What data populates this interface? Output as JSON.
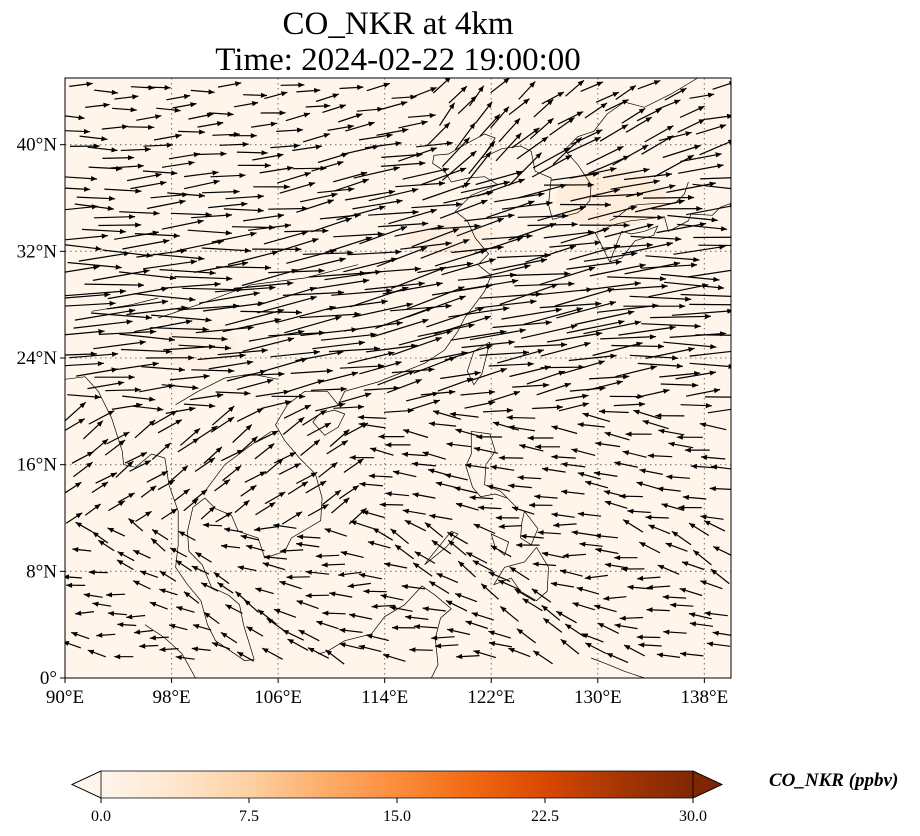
{
  "figure": {
    "title_line1": "CO_NKR at 4km",
    "title_line2": "Time: 2024-02-22 19:00:00"
  },
  "map": {
    "extent": {
      "lon_min": 90,
      "lon_max": 140,
      "lat_min": 0,
      "lat_max": 45
    },
    "lat_ticks": [
      {
        "value": 0,
        "label": "0°"
      },
      {
        "value": 8,
        "label": "8°N"
      },
      {
        "value": 16,
        "label": "16°N"
      },
      {
        "value": 24,
        "label": "24°N"
      },
      {
        "value": 32,
        "label": "32°N"
      },
      {
        "value": 40,
        "label": "40°N"
      }
    ],
    "lon_ticks": [
      {
        "value": 90,
        "label": "90°E"
      },
      {
        "value": 98,
        "label": "98°E"
      },
      {
        "value": 106,
        "label": "106°E"
      },
      {
        "value": 114,
        "label": "114°E"
      },
      {
        "value": 122,
        "label": "122°E"
      },
      {
        "value": 130,
        "label": "130°E"
      },
      {
        "value": 138,
        "label": "138°E"
      }
    ],
    "gridlines": true,
    "background_color": "#fff5eb",
    "coastline_color": "#000000",
    "vector_color": "#000000"
  },
  "colorbar": {
    "label": "CO_NKR (ppbv)",
    "min": 0,
    "max": 30,
    "ticks": [
      {
        "value": 0,
        "label": "0.0"
      },
      {
        "value": 7.5,
        "label": "7.5"
      },
      {
        "value": 15,
        "label": "15.0"
      },
      {
        "value": 22.5,
        "label": "22.5"
      },
      {
        "value": 30,
        "label": "30.0"
      }
    ],
    "colormap": [
      "#fff5eb",
      "#fee6ce",
      "#fdd0a2",
      "#fdae6b",
      "#fd8d3c",
      "#f16913",
      "#d94801",
      "#a63603",
      "#7f2704"
    ],
    "extend": "both"
  }
}
